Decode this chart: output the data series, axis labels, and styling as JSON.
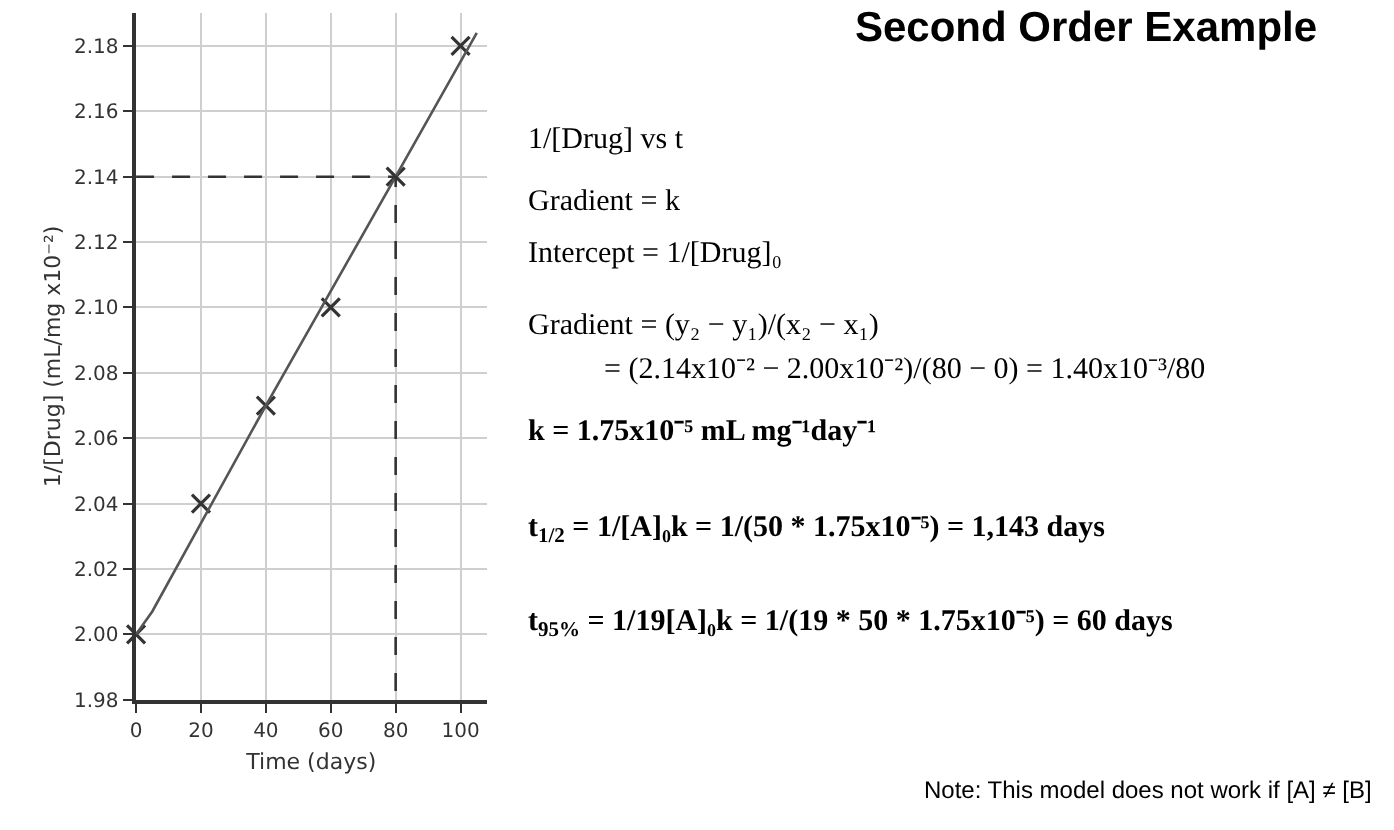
{
  "chart_data": {
    "type": "scatter",
    "title": "Second Order Example",
    "xlabel": "Time (days)",
    "ylabel": "1/[Drug] (mL/mg x10⁻²)",
    "annotations": [
      "1/[Drug] vs t",
      "Gradient = k",
      "Intercept = 1/[Drug]₀",
      "Gradient = (y₂ − y₁)/(x₂ − x₁)",
      "= (2.14x10⁻² − 2.00x10⁻²)/(80 − 0) = 1.40x10⁻³/80",
      "k = 1.75x10⁻⁵ mL mg⁻¹day⁻¹",
      "t$_{1/2}$ = 1/[A]₀k = 1/(50 * 1.75x10⁻⁵) = 1,143 days",
      "t$_{95%}$ = 1/19[A]₀k = 1/(19 * 50 * 1.75x10⁻⁵) = 60 days",
      "Note: This model does not work if [A] ≠ [B]"
    ],
    "series": [
      {
        "color": "#333333",
        "marker": "cross",
        "x": [
          0,
          20,
          40,
          60,
          80,
          100
        ],
        "values": [
          2.0,
          2.04,
          2.07,
          2.1,
          2.14,
          2.18
        ]
      },
      {
        "type": "line",
        "color": "#555555",
        "marker": "none",
        "x": [
          0,
          5,
          40,
          80,
          105
        ],
        "values": [
          2.0,
          2.007,
          2.07,
          2.14,
          2.184
        ]
      },
      {
        "type": "line",
        "color": "#333333",
        "marker": "none",
        "line_style": "dashed",
        "x": [
          0,
          80,
          80
        ],
        "values": [
          2.14,
          2.14,
          1.98
        ]
      }
    ],
    "xlim": [
      0,
      108
    ],
    "ylim": [
      1.98,
      2.19
    ],
    "xticks": [
      0,
      20,
      40,
      60,
      80,
      100
    ],
    "yticks": [
      1.98,
      {
        "value": 2.0,
        "label": "2.00"
      },
      2.02,
      2.04,
      2.06,
      2.08,
      {
        "value": 2.1,
        "label": "2.10"
      },
      2.12,
      2.14,
      2.16,
      2.18
    ],
    "grid": true
  }
}
